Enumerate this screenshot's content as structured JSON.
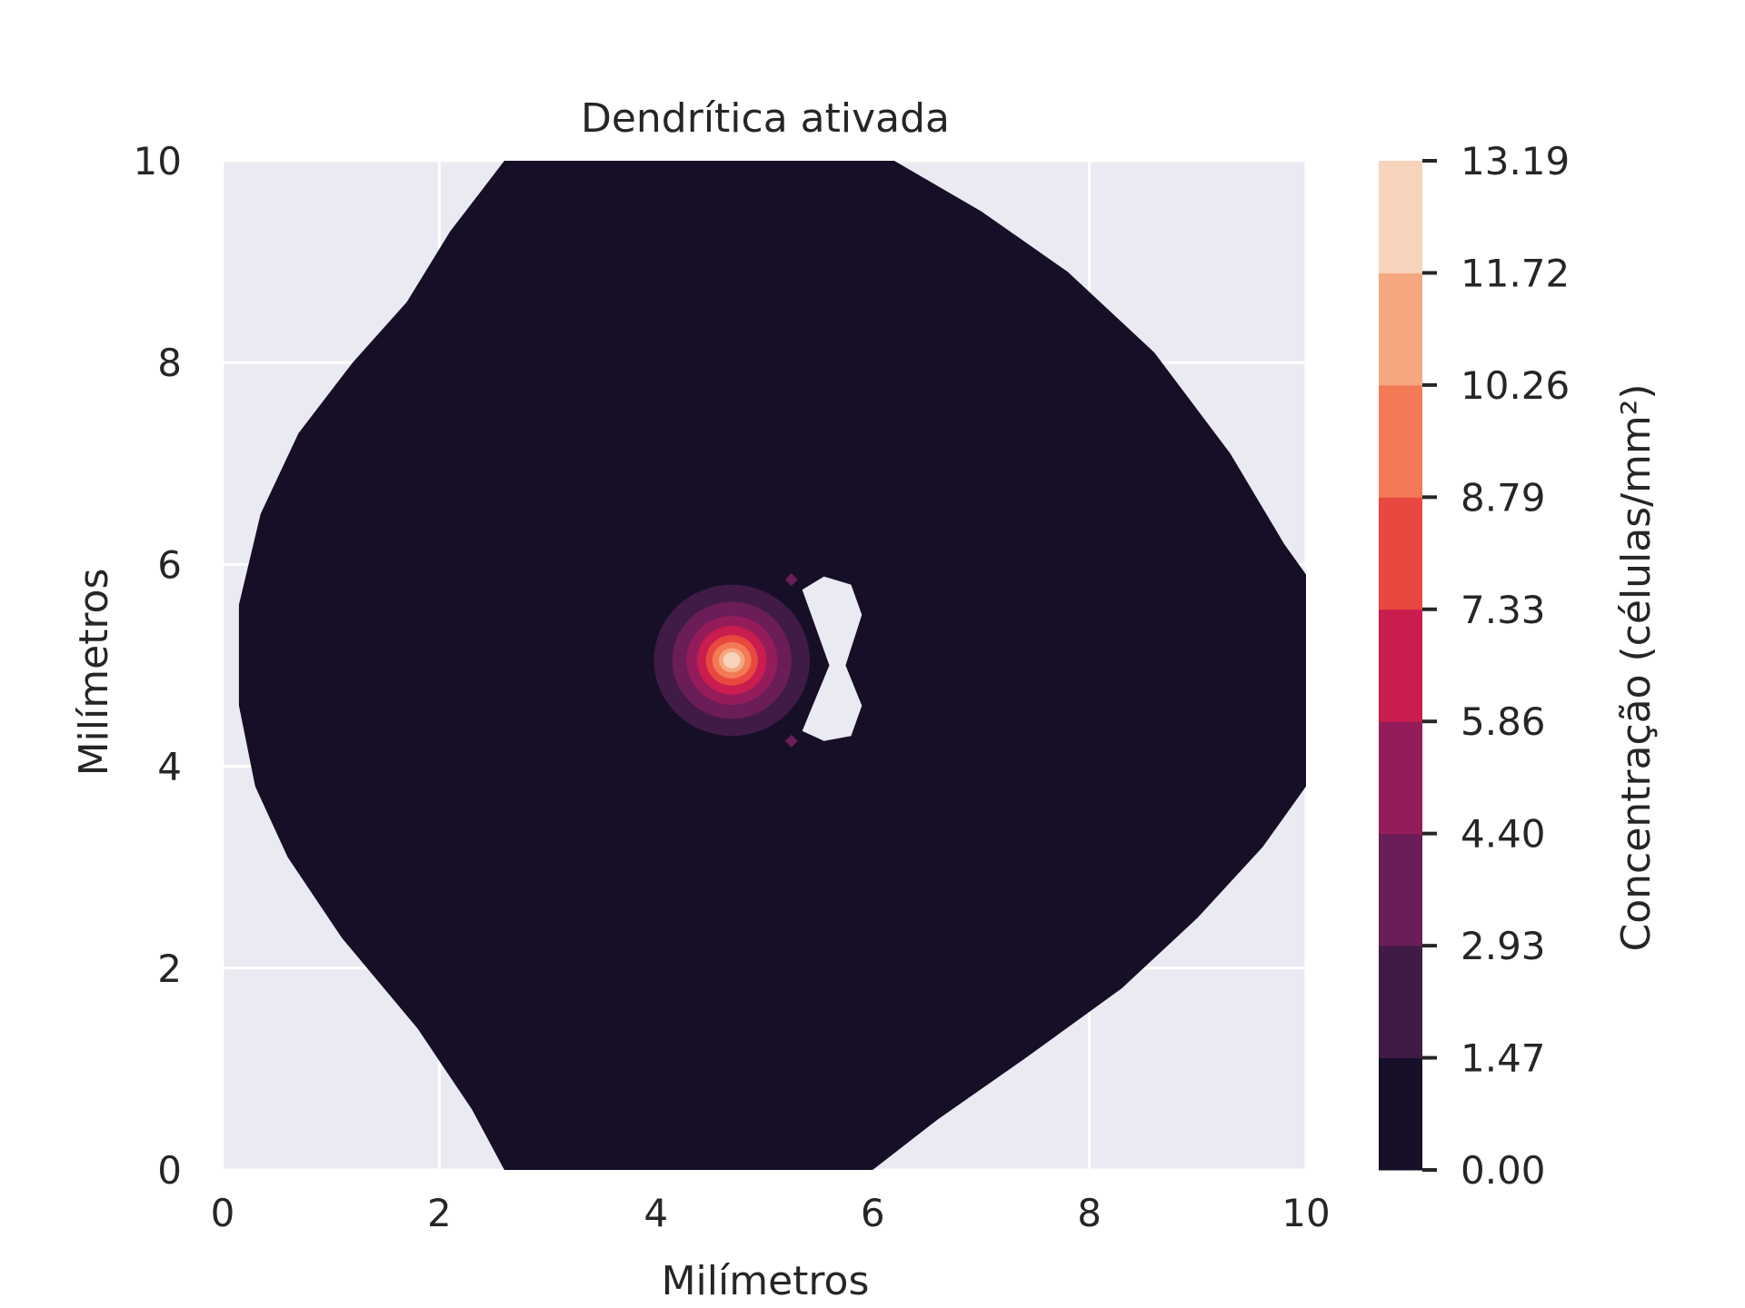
{
  "chart_data": {
    "type": "contour",
    "title": "Dendrítica ativada",
    "xlabel": "Milímetros",
    "ylabel": "Milímetros",
    "xlim": [
      0,
      10
    ],
    "ylim": [
      0,
      10
    ],
    "x_ticks": [
      "0",
      "2",
      "4",
      "6",
      "8",
      "10"
    ],
    "y_ticks": [
      "0",
      "2",
      "4",
      "6",
      "8",
      "10"
    ],
    "grid": true,
    "colorbar": {
      "label": "Concentração (células/mm²)",
      "levels": [
        "0.00",
        "1.47",
        "2.93",
        "4.40",
        "5.86",
        "7.33",
        "8.79",
        "10.26",
        "11.72",
        "13.19"
      ],
      "colors": [
        "#160f27",
        "#3f1b45",
        "#6a1d57",
        "#951c5b",
        "#c91c4f",
        "#e8483f",
        "#f27a55",
        "#f5a780",
        "#f7d3bb"
      ]
    },
    "background_color": "#eaeaf2",
    "field": {
      "filled_region_color": "#160f27",
      "peak": {
        "x": 4.7,
        "y": 5.0,
        "value": 13.19
      },
      "contour_levels_drawn": [
        {
          "level_index": 1,
          "x": 4.7,
          "y": 5.05,
          "rx": 0.72,
          "ry": 0.75
        },
        {
          "level_index": 2,
          "x": 4.7,
          "y": 5.05,
          "rx": 0.55,
          "ry": 0.58
        },
        {
          "level_index": 3,
          "x": 4.7,
          "y": 5.05,
          "rx": 0.42,
          "ry": 0.44
        },
        {
          "level_index": 4,
          "x": 4.7,
          "y": 5.05,
          "rx": 0.32,
          "ry": 0.34
        },
        {
          "level_index": 5,
          "x": 4.7,
          "y": 5.05,
          "rx": 0.24,
          "ry": 0.25
        },
        {
          "level_index": 6,
          "x": 4.7,
          "y": 5.05,
          "rx": 0.18,
          "ry": 0.18
        },
        {
          "level_index": 7,
          "x": 4.7,
          "y": 5.05,
          "rx": 0.12,
          "ry": 0.12
        },
        {
          "level_index": 8,
          "x": 4.7,
          "y": 5.05,
          "rx": 0.08,
          "ry": 0.08
        }
      ],
      "outer_boundary": [
        [
          2.6,
          10
        ],
        [
          6.2,
          10
        ],
        [
          7.0,
          9.5
        ],
        [
          7.8,
          8.9
        ],
        [
          8.6,
          8.1
        ],
        [
          9.3,
          7.1
        ],
        [
          9.8,
          6.2
        ],
        [
          10,
          5.9
        ],
        [
          10,
          3.8
        ],
        [
          9.6,
          3.2
        ],
        [
          9.0,
          2.5
        ],
        [
          8.3,
          1.8
        ],
        [
          7.4,
          1.1
        ],
        [
          6.6,
          0.5
        ],
        [
          6.0,
          0
        ],
        [
          2.6,
          0
        ],
        [
          2.3,
          0.6
        ],
        [
          1.8,
          1.4
        ],
        [
          1.1,
          2.3
        ],
        [
          0.6,
          3.1
        ],
        [
          0.3,
          3.8
        ],
        [
          0.15,
          4.6
        ],
        [
          0.15,
          5.6
        ],
        [
          0.35,
          6.5
        ],
        [
          0.7,
          7.3
        ],
        [
          1.2,
          8.0
        ],
        [
          1.7,
          8.6
        ],
        [
          2.1,
          9.3
        ]
      ],
      "hole": [
        [
          5.35,
          5.75
        ],
        [
          5.55,
          5.88
        ],
        [
          5.8,
          5.8
        ],
        [
          5.9,
          5.5
        ],
        [
          5.75,
          5.0
        ],
        [
          5.9,
          4.6
        ],
        [
          5.8,
          4.3
        ],
        [
          5.55,
          4.25
        ],
        [
          5.35,
          4.35
        ],
        [
          5.6,
          5.0
        ]
      ],
      "small_markers": [
        {
          "x": 5.25,
          "y": 5.85,
          "level_index": 2
        },
        {
          "x": 5.25,
          "y": 4.25,
          "level_index": 2
        }
      ]
    }
  }
}
